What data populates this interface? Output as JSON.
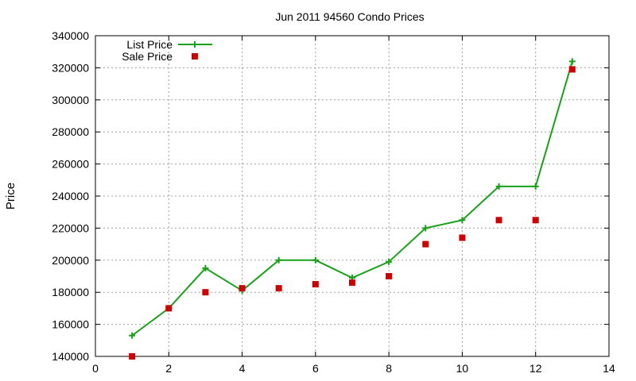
{
  "chart_data": {
    "type": "line",
    "title": "Jun 2011 94560 Condo Prices",
    "xlabel": "",
    "ylabel": "Price",
    "xlim": [
      0,
      14
    ],
    "ylim": [
      140000,
      340000
    ],
    "xticks": [
      "0",
      "2",
      "4",
      "6",
      "8",
      "10",
      "12",
      "14"
    ],
    "yticks": [
      "140000",
      "160000",
      "180000",
      "200000",
      "220000",
      "240000",
      "260000",
      "280000",
      "300000",
      "320000",
      "340000"
    ],
    "grid": true,
    "legend_position": "top-left",
    "series": [
      {
        "name": "List Price",
        "style": "line-with-plus-markers",
        "color": "#1aa01a",
        "x": [
          1,
          2,
          3,
          4,
          5,
          6,
          7,
          8,
          9,
          10,
          11,
          12,
          13
        ],
        "y": [
          153000,
          170000,
          195000,
          181000,
          200000,
          200000,
          189000,
          199000,
          220000,
          225000,
          246000,
          246000,
          324000
        ]
      },
      {
        "name": "Sale Price",
        "style": "square-markers",
        "color": "#cc0000",
        "x": [
          1,
          2,
          3,
          4,
          5,
          6,
          7,
          8,
          9,
          10,
          11,
          12,
          13
        ],
        "y": [
          140000,
          170000,
          180000,
          182500,
          182500,
          185000,
          186000,
          190000,
          210000,
          214000,
          225000,
          225000,
          319000
        ]
      }
    ]
  }
}
